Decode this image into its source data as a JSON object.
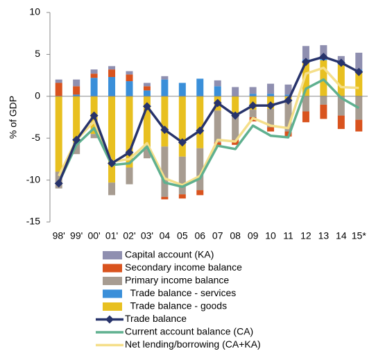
{
  "chart_data": {
    "type": "bar-line",
    "y_label": "% of GDP",
    "categories": [
      "98'",
      "99'",
      "00'",
      "01'",
      "02'",
      "03'",
      "04",
      "05",
      "06",
      "07",
      "08",
      "09",
      "10",
      "11",
      "12",
      "13",
      "14",
      "15*"
    ],
    "ylim": [
      -15,
      10
    ],
    "yticks": [
      -15,
      -10,
      -5,
      0,
      5,
      10
    ],
    "series": [
      {
        "name": "Capital account (KA)",
        "kind": "bar",
        "color": "#8f8fb0",
        "values": [
          0.4,
          0.8,
          0.5,
          0.4,
          0.4,
          0.4,
          0.4,
          0,
          0,
          0.7,
          1.1,
          0.8,
          1.2,
          1.2,
          1.6,
          1.3,
          0.7,
          2.0
        ]
      },
      {
        "name": "Secondary income balance",
        "kind": "bar",
        "color": "#d9531e",
        "values": [
          1.6,
          1.0,
          0.5,
          0.9,
          0.8,
          0.5,
          -0.3,
          -0.5,
          -0.6,
          -0.5,
          -0.6,
          -0.5,
          -0.5,
          -0.6,
          -1.3,
          -1.7,
          -1.6,
          -1.4
        ]
      },
      {
        "name": "Primary income balance",
        "kind": "bar",
        "color": "#a79c91",
        "values": [
          -2.0,
          -1.4,
          -0.5,
          -1.5,
          -2.0,
          -1.4,
          -6.0,
          -4.5,
          -5.0,
          -3.8,
          -3.0,
          -0.9,
          -2.2,
          -3.5,
          -1.8,
          -1.0,
          -2.3,
          -2.8
        ]
      },
      {
        "name": "  Trade balance - services",
        "kind": "bar",
        "color": "#3a8fd9",
        "values": [
          0,
          0.2,
          2.2,
          2.3,
          1.8,
          0.7,
          2.0,
          1.6,
          2.1,
          1.2,
          0,
          0.3,
          0.3,
          0.2,
          0.4,
          0.5,
          0.3,
          0.2
        ]
      },
      {
        "name": "  Trade balance - goods",
        "kind": "bar",
        "color": "#e8c020",
        "values": [
          -9.0,
          -5.5,
          -4.5,
          -10.3,
          -8.5,
          -6.0,
          -6.0,
          -7.2,
          -6.2,
          -1.7,
          -2.2,
          -1.6,
          -1.5,
          -0.7,
          4.0,
          4.3,
          3.8,
          3.0
        ]
      },
      {
        "name": "Trade balance",
        "kind": "line",
        "marker": true,
        "color": "#27336b",
        "values": [
          -10.4,
          -5.2,
          -2.3,
          -8.0,
          -6.7,
          -1.2,
          -4.0,
          -5.5,
          -4.1,
          -0.8,
          -2.3,
          -1.1,
          -1.1,
          -0.5,
          4.1,
          4.7,
          4.0,
          2.9
        ]
      },
      {
        "name": "Current account balance (CA)",
        "kind": "line",
        "color": "#5fb08f",
        "values": [
          -10.3,
          -5.8,
          -3.8,
          -8.2,
          -8.0,
          -6.0,
          -10.3,
          -10.8,
          -9.8,
          -5.9,
          -6.3,
          -3.5,
          -4.7,
          -4.9,
          0.9,
          2.0,
          -0.2,
          -1.4
        ]
      },
      {
        "name": "Net lending/borrowing (CA+KA)",
        "kind": "line",
        "color": "#f5df8a",
        "values": [
          -9.5,
          -5.2,
          -3.0,
          -7.8,
          -7.5,
          -5.6,
          -9.8,
          -10.6,
          -9.5,
          -5.2,
          -5.4,
          -2.6,
          -3.5,
          -3.8,
          2.7,
          3.4,
          1.1,
          1.0
        ]
      }
    ]
  }
}
